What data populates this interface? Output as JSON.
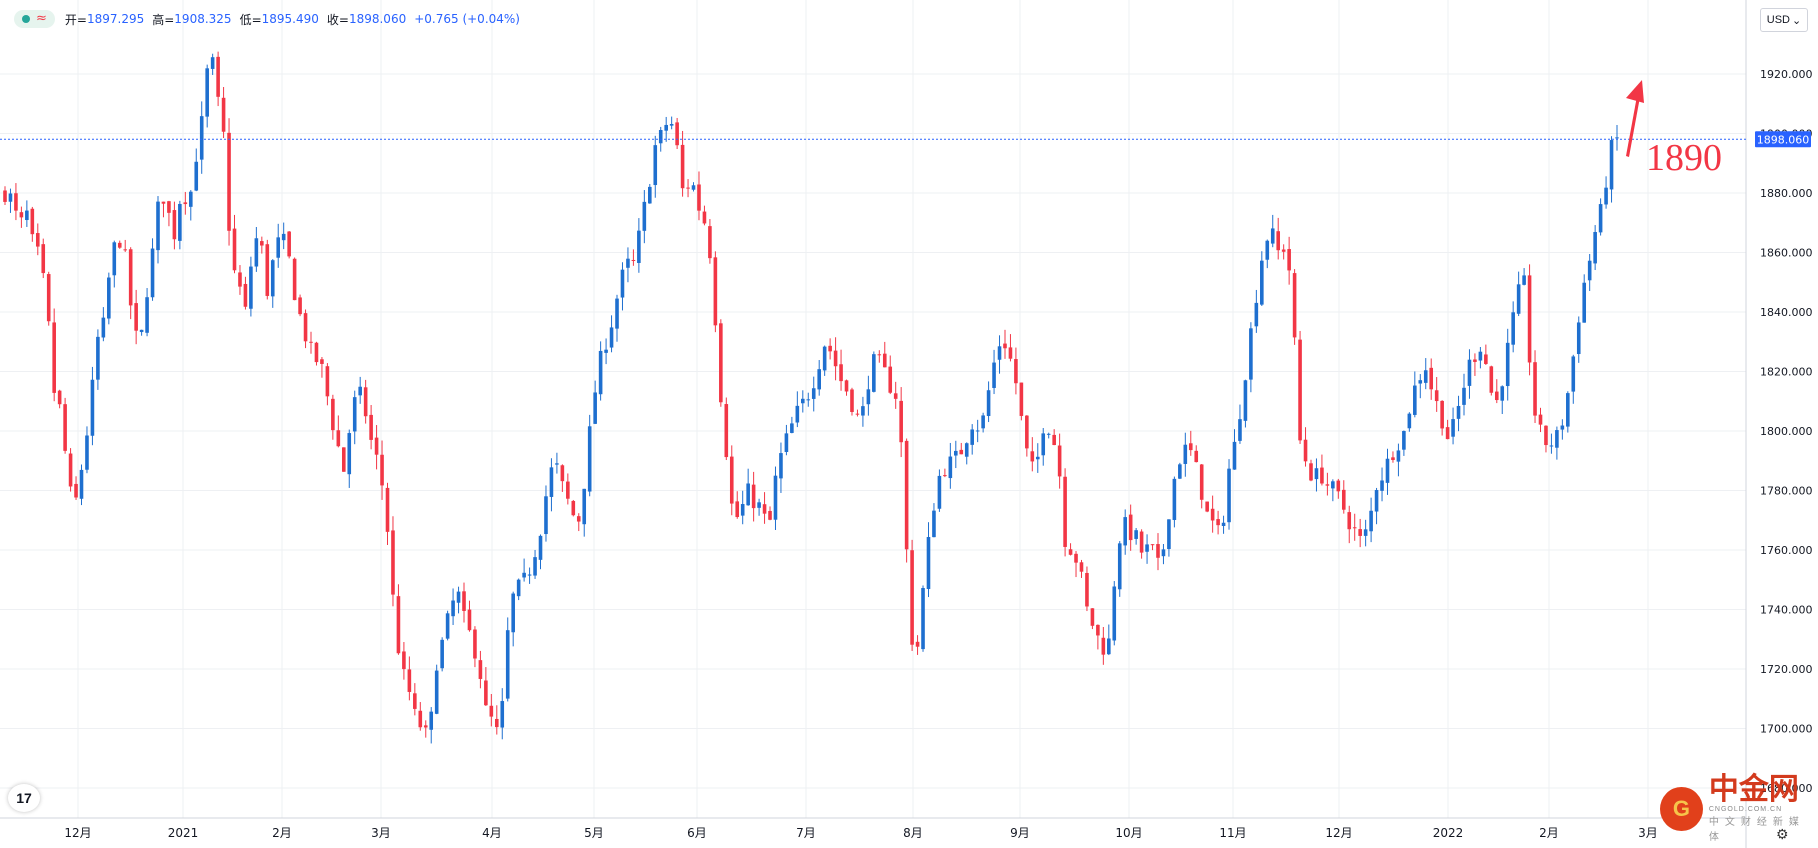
{
  "legend": {
    "open_label": "开=",
    "open": "1897.295",
    "high_label": "高=",
    "high": "1908.325",
    "low_label": "低=",
    "low": "1895.490",
    "close_label": "收=",
    "close": "1898.060",
    "change": "+0.765 (+0.04%)",
    "wave_symbol": "≈"
  },
  "currency": "USD",
  "currency_icon": "chevron-down-icon",
  "annotation": {
    "text": "1890",
    "color": "#f23645"
  },
  "last_price_label": "1898.060",
  "watermark": {
    "name": "中金网",
    "url": "CNGOLD.COM.CN",
    "sub": "中文财经新媒体",
    "logo_glyph": "G"
  },
  "tv_logo_text": "17",
  "colors": {
    "up": "#1e6fcf",
    "down": "#f23645",
    "price_line": "#2962ff",
    "grid": "#eef0f3"
  },
  "chart_data": {
    "type": "candlestick",
    "ylim": [
      1680,
      1940
    ],
    "y_ticks": [
      "1920.000",
      "1900.000",
      "1880.000",
      "1860.000",
      "1840.000",
      "1820.000",
      "1800.000",
      "1780.000",
      "1760.000",
      "1740.000",
      "1720.000",
      "1700.000",
      "1680.000"
    ],
    "x_ticks": [
      "12月",
      "2021",
      "2月",
      "3月",
      "4月",
      "5月",
      "6月",
      "7月",
      "8月",
      "9月",
      "10月",
      "11月",
      "12月",
      "2022",
      "2月",
      "3月"
    ],
    "last_price": 1898.06,
    "anchors": [
      1880,
      1878,
      1868,
      1874,
      1862,
      1858,
      1840,
      1812,
      1806,
      1780,
      1776,
      1790,
      1806,
      1830,
      1836,
      1858,
      1866,
      1858,
      1838,
      1826,
      1846,
      1862,
      1882,
      1874,
      1866,
      1882,
      1876,
      1892,
      1906,
      1930,
      1912,
      1898,
      1856,
      1850,
      1840,
      1860,
      1868,
      1846,
      1858,
      1866,
      1860,
      1846,
      1836,
      1828,
      1824,
      1820,
      1806,
      1796,
      1786,
      1806,
      1814,
      1806,
      1794,
      1788,
      1770,
      1740,
      1720,
      1714,
      1704,
      1700,
      1696,
      1722,
      1730,
      1740,
      1746,
      1736,
      1730,
      1722,
      1706,
      1702,
      1696,
      1730,
      1746,
      1748,
      1752,
      1760,
      1770,
      1786,
      1788,
      1780,
      1774,
      1768,
      1784,
      1806,
      1822,
      1830,
      1838,
      1850,
      1856,
      1856,
      1870,
      1882,
      1896,
      1900,
      1906,
      1896,
      1878,
      1886,
      1876,
      1870,
      1856,
      1818,
      1794,
      1770,
      1772,
      1780,
      1776,
      1774,
      1766,
      1784,
      1794,
      1800,
      1806,
      1810,
      1814,
      1822,
      1830,
      1826,
      1818,
      1814,
      1808,
      1802,
      1816,
      1824,
      1822,
      1816,
      1812,
      1790,
      1732,
      1726,
      1750,
      1770,
      1784,
      1788,
      1790,
      1792,
      1798,
      1804,
      1800,
      1812,
      1824,
      1832,
      1826,
      1816,
      1800,
      1786,
      1790,
      1804,
      1800,
      1790,
      1762,
      1760,
      1754,
      1740,
      1734,
      1728,
      1726,
      1752,
      1770,
      1766,
      1764,
      1758,
      1762,
      1754,
      1762,
      1780,
      1790,
      1794,
      1792,
      1782,
      1772,
      1768,
      1764,
      1786,
      1796,
      1812,
      1830,
      1846,
      1862,
      1868,
      1860,
      1862,
      1850,
      1798,
      1790,
      1784,
      1786,
      1782,
      1780,
      1776,
      1770,
      1766,
      1762,
      1770,
      1782,
      1786,
      1792,
      1796,
      1800,
      1812,
      1818,
      1822,
      1812,
      1806,
      1798,
      1802,
      1812,
      1822,
      1826,
      1830,
      1814,
      1810,
      1820,
      1834,
      1846,
      1850,
      1810,
      1800,
      1796,
      1796,
      1800,
      1812,
      1828,
      1846,
      1856,
      1868,
      1876,
      1894,
      1898
    ]
  }
}
